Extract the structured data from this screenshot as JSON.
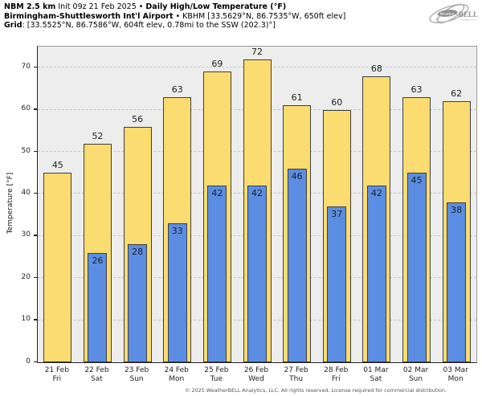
{
  "header": {
    "line1_bold1": "NBM 2.5 km",
    "line1_mid": " Init 09z 21 Feb 2025 • ",
    "line1_bold2": "Daily High/Low Temperature (°F)",
    "line2_bold": "Birmingham-Shuttlesworth Int'l Airport",
    "line2_rest": " • KBHM [33.5629°N, 86.7535°W, 650ft elev]",
    "line3_bold": "Grid",
    "line3_rest": ": [33.5525°N, 86.7586°W, 604ft elev, 0.78mi to the SSW (202.3)°]"
  },
  "logo": {
    "weather": "Weather",
    "bell": "BELL",
    "sub": "Analytics LLC"
  },
  "footer": {
    "copyright": "© 2025 WeatherBELL Analytics, LLC. All rights reserved. License required for commercial distribution."
  },
  "chart_data": {
    "type": "bar",
    "title": "NBM 2.5 km Daily High/Low Temperature (°F) — Birmingham-Shuttlesworth Int'l Airport (KBHM)",
    "xlabel": "",
    "ylabel": "Temperature [°F]",
    "ylim": [
      0,
      75
    ],
    "yticks": [
      0,
      10,
      20,
      30,
      40,
      50,
      60,
      70
    ],
    "grid": "horizontal-dashed",
    "legend_position": "none",
    "categories": [
      [
        "21 Feb",
        "Fri"
      ],
      [
        "22 Feb",
        "Sat"
      ],
      [
        "23 Feb",
        "Sun"
      ],
      [
        "24 Feb",
        "Mon"
      ],
      [
        "25 Feb",
        "Tue"
      ],
      [
        "26 Feb",
        "Wed"
      ],
      [
        "27 Feb",
        "Thu"
      ],
      [
        "28 Feb",
        "Fri"
      ],
      [
        "01 Mar",
        "Sat"
      ],
      [
        "02 Mar",
        "Sun"
      ],
      [
        "03 Mar",
        "Mon"
      ]
    ],
    "series": [
      {
        "name": "Daily High",
        "color": "#FADC70",
        "values": [
          45,
          52,
          56,
          63,
          69,
          72,
          61,
          60,
          68,
          63,
          62
        ]
      },
      {
        "name": "Daily Low",
        "color": "#5B8EE3",
        "values": [
          null,
          26,
          28,
          33,
          42,
          42,
          46,
          37,
          42,
          45,
          38
        ]
      }
    ],
    "plot_bg": "#EDEDED",
    "bar_border": "#3F3F3F",
    "grid_color": "#C8C8C8"
  }
}
